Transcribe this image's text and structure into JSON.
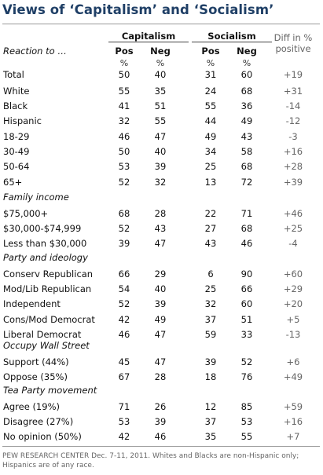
{
  "title": "Views of ‘Capitalism’ and ‘Socialism’",
  "reaction_label": "Reaction to …",
  "groups": [
    "Capitalism",
    "Socialism"
  ],
  "diff_header": [
    "Diff in %",
    "positive"
  ],
  "col_headers": [
    "Pos",
    "Neg",
    "Pos",
    "Neg"
  ],
  "pct_symbol": "%",
  "footer": "PEW RESEARCH CENTER Dec. 7-11, 2011. Whites and Blacks are non-Hispanic only; Hispanics are of any race.",
  "chart_data": {
    "type": "table",
    "title": "Views of ‘Capitalism’ and ‘Socialism’",
    "columns": [
      "Capitalism Pos %",
      "Capitalism Neg %",
      "Socialism Pos %",
      "Socialism Neg %",
      "Diff in % positive"
    ],
    "sections": [
      {
        "name": "",
        "rows": [
          {
            "label": "Total",
            "values": [
              "50",
              "40",
              "31",
              "60",
              "+19"
            ]
          }
        ]
      },
      {
        "name": "",
        "rows": [
          {
            "label": "White",
            "values": [
              "55",
              "35",
              "24",
              "68",
              "+31"
            ]
          },
          {
            "label": "Black",
            "values": [
              "41",
              "51",
              "55",
              "36",
              "-14"
            ]
          },
          {
            "label": "Hispanic",
            "values": [
              "32",
              "55",
              "44",
              "49",
              "-12"
            ]
          }
        ]
      },
      {
        "name": "",
        "rows": [
          {
            "label": "18-29",
            "values": [
              "46",
              "47",
              "49",
              "43",
              "-3"
            ]
          },
          {
            "label": "30-49",
            "values": [
              "50",
              "40",
              "34",
              "58",
              "+16"
            ]
          },
          {
            "label": "50-64",
            "values": [
              "53",
              "39",
              "25",
              "68",
              "+28"
            ]
          },
          {
            "label": "65+",
            "values": [
              "52",
              "32",
              "13",
              "72",
              "+39"
            ]
          }
        ]
      },
      {
        "name": "Family income",
        "rows": [
          {
            "label": "$75,000+",
            "values": [
              "68",
              "28",
              "22",
              "71",
              "+46"
            ]
          },
          {
            "label": "$30,000-$74,999",
            "values": [
              "52",
              "43",
              "27",
              "68",
              "+25"
            ]
          },
          {
            "label": "Less than $30,000",
            "values": [
              "39",
              "47",
              "43",
              "46",
              "-4"
            ]
          }
        ]
      },
      {
        "name": "Party and ideology",
        "rows": [
          {
            "label": "Conserv Republican",
            "values": [
              "66",
              "29",
              "6",
              "90",
              "+60"
            ]
          },
          {
            "label": "Mod/Lib Republican",
            "values": [
              "54",
              "40",
              "25",
              "66",
              "+29"
            ]
          },
          {
            "label": "Independent",
            "values": [
              "52",
              "39",
              "32",
              "60",
              "+20"
            ]
          },
          {
            "label": "Cons/Mod Democrat",
            "values": [
              "42",
              "49",
              "37",
              "51",
              "+5"
            ]
          },
          {
            "label": "Liberal Democrat",
            "values": [
              "46",
              "47",
              "59",
              "33",
              "-13"
            ]
          }
        ]
      },
      {
        "name": "Occupy Wall Street",
        "rows": [
          {
            "label": "Support (44%)",
            "values": [
              "45",
              "47",
              "39",
              "52",
              "+6"
            ]
          },
          {
            "label": "Oppose (35%)",
            "values": [
              "67",
              "28",
              "18",
              "76",
              "+49"
            ]
          }
        ]
      },
      {
        "name": "Tea Party movement",
        "rows": [
          {
            "label": "Agree (19%)",
            "values": [
              "71",
              "26",
              "12",
              "85",
              "+59"
            ]
          },
          {
            "label": "Disagree (27%)",
            "values": [
              "53",
              "39",
              "37",
              "53",
              "+16"
            ]
          },
          {
            "label": "No opinion (50%)",
            "values": [
              "42",
              "46",
              "35",
              "55",
              "+7"
            ]
          }
        ]
      }
    ]
  }
}
